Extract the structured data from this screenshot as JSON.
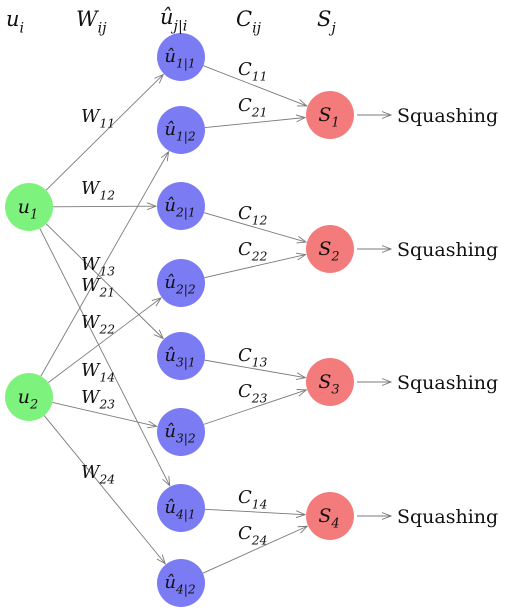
{
  "headers": {
    "u": {
      "main": "u",
      "sub": "i"
    },
    "w": {
      "main": "W",
      "sub": "ij"
    },
    "uhat": {
      "main": "û",
      "sub": "j|i"
    },
    "c": {
      "main": "C",
      "sub": "ij"
    },
    "s": {
      "main": "S",
      "sub": "j"
    }
  },
  "colors": {
    "input": "#7df27d",
    "prediction": "#7b7bf4",
    "output": "#f47b7b",
    "edge": "#7a7a7a",
    "text": "#111111"
  },
  "inputs": [
    {
      "main": "u",
      "sub": "1"
    },
    {
      "main": "u",
      "sub": "2"
    }
  ],
  "predictions": [
    {
      "main": "û",
      "sub": "1|1"
    },
    {
      "main": "û",
      "sub": "1|2"
    },
    {
      "main": "û",
      "sub": "2|1"
    },
    {
      "main": "û",
      "sub": "2|2"
    },
    {
      "main": "û",
      "sub": "3|1"
    },
    {
      "main": "û",
      "sub": "3|2"
    },
    {
      "main": "û",
      "sub": "4|1"
    },
    {
      "main": "û",
      "sub": "4|2"
    }
  ],
  "outputs": [
    {
      "main": "S",
      "sub": "1",
      "squash": "Squashing"
    },
    {
      "main": "S",
      "sub": "2",
      "squash": "Squashing"
    },
    {
      "main": "S",
      "sub": "3",
      "squash": "Squashing"
    },
    {
      "main": "S",
      "sub": "4",
      "squash": "Squashing"
    }
  ],
  "weights": [
    {
      "main": "W",
      "sub": "11"
    },
    {
      "main": "W",
      "sub": "12"
    },
    {
      "main": "W",
      "sub": "13"
    },
    {
      "main": "W",
      "sub": "14"
    },
    {
      "main": "W",
      "sub": "21"
    },
    {
      "main": "W",
      "sub": "22"
    },
    {
      "main": "W",
      "sub": "23"
    },
    {
      "main": "W",
      "sub": "24"
    }
  ],
  "couplings": [
    {
      "main": "C",
      "sub": "11"
    },
    {
      "main": "C",
      "sub": "21"
    },
    {
      "main": "C",
      "sub": "12"
    },
    {
      "main": "C",
      "sub": "22"
    },
    {
      "main": "C",
      "sub": "13"
    },
    {
      "main": "C",
      "sub": "23"
    },
    {
      "main": "C",
      "sub": "14"
    },
    {
      "main": "C",
      "sub": "24"
    }
  ]
}
